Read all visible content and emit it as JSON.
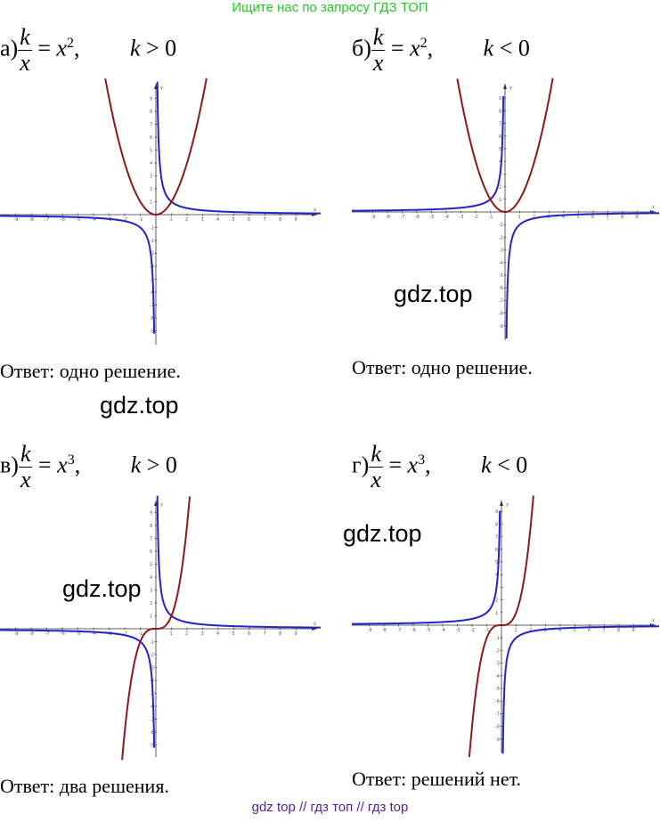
{
  "header": {
    "link_text": "Ищите нас по запросу ГДЗ ТОП"
  },
  "footer": {
    "links_text": "gdz top  //  гдз топ  //  гдз top"
  },
  "watermark": "gdz.top",
  "colors": {
    "hyperbola": "#2323c8",
    "power": "#8b1a1a",
    "axis": "#333333",
    "top_link": "#22cc22",
    "bottom_link": "#5a1d8c"
  },
  "panels": [
    {
      "label": "а)",
      "numerator": "k",
      "denominator": "x",
      "rhs_base": "x",
      "exponent": "2",
      "condition_var": "k",
      "condition_op": "> 0",
      "answer": "Ответ: одно решение.",
      "chart_data": {
        "type": "line",
        "x_range": [
          -10,
          10
        ],
        "y_range": [
          -10,
          10
        ],
        "series": [
          {
            "function": "y = 1/x",
            "color": "#2323c8"
          },
          {
            "function": "y = x^2",
            "color": "#8b1a1a"
          }
        ],
        "x_ticks": [
          -9,
          -8,
          -7,
          -6,
          -5,
          -4,
          -3,
          -2,
          -1,
          1,
          2,
          3,
          4,
          5,
          6,
          7,
          8,
          9
        ],
        "y_ticks": [
          -9,
          -8,
          -7,
          -6,
          -5,
          -4,
          -3,
          -2,
          -1,
          1,
          2,
          3,
          4,
          5,
          6,
          7,
          8,
          9
        ],
        "x_label": "x",
        "y_label": "y",
        "intersections": 1
      }
    },
    {
      "label": "б)",
      "numerator": "k",
      "denominator": "x",
      "rhs_base": "x",
      "exponent": "2",
      "condition_var": "k",
      "condition_op": "< 0",
      "answer": "Ответ: одно решение.",
      "chart_data": {
        "type": "line",
        "x_range": [
          -10,
          10
        ],
        "y_range": [
          -10,
          10
        ],
        "series": [
          {
            "function": "y = -1/x",
            "color": "#2323c8"
          },
          {
            "function": "y = x^2",
            "color": "#8b1a1a"
          }
        ],
        "x_ticks": [
          -9,
          -8,
          -7,
          -6,
          -5,
          -4,
          -3,
          -2,
          -1,
          1,
          2,
          3,
          4,
          5,
          6,
          7,
          8,
          9
        ],
        "y_ticks": [
          -9,
          -8,
          -7,
          -6,
          -5,
          -4,
          -3,
          -2,
          -1,
          1,
          2,
          3,
          4,
          5,
          6,
          7,
          8,
          9
        ],
        "x_label": "x",
        "y_label": "y",
        "intersections": 1
      }
    },
    {
      "label": "в)",
      "numerator": "k",
      "denominator": "x",
      "rhs_base": "x",
      "exponent": "3",
      "condition_var": "k",
      "condition_op": "> 0",
      "answer": "Ответ: два решения.",
      "chart_data": {
        "type": "line",
        "x_range": [
          -10,
          10
        ],
        "y_range": [
          -10,
          10
        ],
        "series": [
          {
            "function": "y = 1/x",
            "color": "#2323c8"
          },
          {
            "function": "y = x^3",
            "color": "#8b1a1a"
          }
        ],
        "x_ticks": [
          -9,
          -8,
          -7,
          -6,
          -5,
          -4,
          -3,
          -2,
          -1,
          1,
          2,
          3,
          4,
          5,
          6,
          7,
          8,
          9
        ],
        "y_ticks": [
          -9,
          -8,
          -7,
          -6,
          -5,
          -4,
          -3,
          -2,
          -1,
          1,
          2,
          3,
          4,
          5,
          6,
          7,
          8,
          9
        ],
        "x_label": "x",
        "y_label": "y",
        "intersections": 2
      }
    },
    {
      "label": "г)",
      "numerator": "k",
      "denominator": "x",
      "rhs_base": "x",
      "exponent": "3",
      "condition_var": "k",
      "condition_op": "< 0",
      "answer": "Ответ: решений нет.",
      "chart_data": {
        "type": "line",
        "x_range": [
          -10,
          10
        ],
        "y_range": [
          -10,
          10
        ],
        "series": [
          {
            "function": "y = -1/x",
            "color": "#2323c8"
          },
          {
            "function": "y = x^3",
            "color": "#8b1a1a"
          }
        ],
        "x_ticks": [
          -9,
          -8,
          -7,
          -6,
          -5,
          -4,
          -3,
          -2,
          -1,
          1,
          2,
          3,
          4,
          5,
          6,
          7,
          8,
          9
        ],
        "y_ticks": [
          -9,
          -8,
          -7,
          -6,
          -5,
          -4,
          -3,
          -2,
          -1,
          1,
          2,
          3,
          4,
          5,
          6,
          7,
          8,
          9
        ],
        "x_label": "x",
        "y_label": "y",
        "intersections": 0
      }
    }
  ]
}
